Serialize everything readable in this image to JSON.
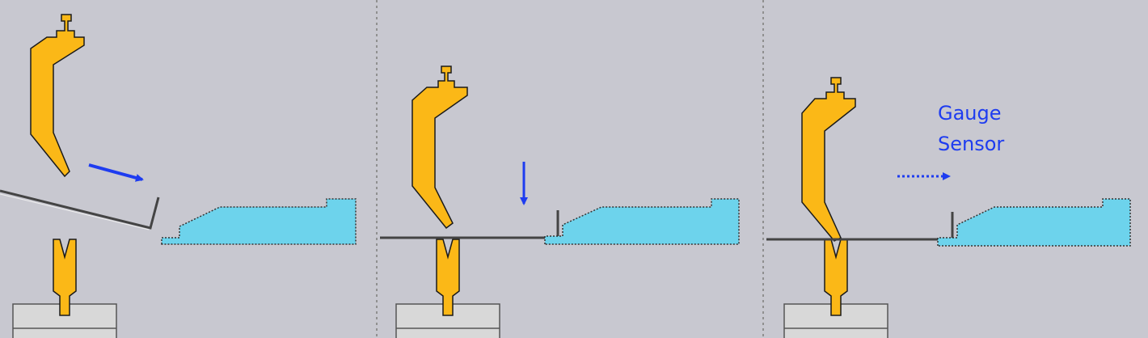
{
  "colors": {
    "background": "#c8c8d0",
    "divider": "#909090",
    "punch": "#fbb817",
    "punch_stroke": "#1a1a1a",
    "die": "#fbb817",
    "backgauge": "#6dd3ec",
    "sheet": "#444444",
    "arrow": "#1e3cf0",
    "die_holder": "#d8d8d8",
    "die_holder_stroke": "#555555"
  },
  "steps": [
    {
      "id": "step-1",
      "motion": "diagonal-arrow",
      "arrow_style": "solid"
    },
    {
      "id": "step-2",
      "motion": "down-arrow",
      "arrow_style": "solid"
    },
    {
      "id": "step-3",
      "motion": "right-arrow",
      "arrow_style": "dotted"
    }
  ],
  "labels": {
    "gauge_line1": "Gauge",
    "gauge_line2": "Sensor"
  }
}
